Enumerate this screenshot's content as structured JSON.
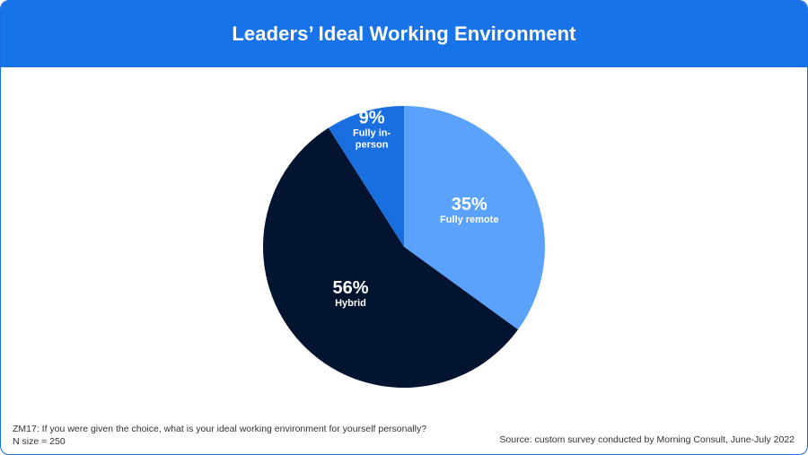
{
  "title": "Leaders’ Ideal Working Environment",
  "colors": {
    "header_bg": "#1873e8",
    "border": "#1a6fe8"
  },
  "chart_data": {
    "type": "pie",
    "slices": [
      {
        "label": "Fully remote",
        "value": 35,
        "value_label": "35%",
        "color": "#5aa2fb"
      },
      {
        "label": "Hybrid",
        "value": 56,
        "value_label": "56%",
        "color": "#021430"
      },
      {
        "label": "Fully in-person",
        "label_lines": [
          "Fully in-",
          "person"
        ],
        "value": 9,
        "value_label": "9%",
        "color": "#1a6fe0"
      }
    ],
    "start_angle_deg": 0,
    "direction": "clockwise"
  },
  "footer": {
    "question": "ZM17: If you were given the choice, what is your ideal working environment for yourself personally?",
    "n_size": "N size = 250",
    "source": "Source: custom survey conducted by Morning Consult, June-July 2022"
  }
}
